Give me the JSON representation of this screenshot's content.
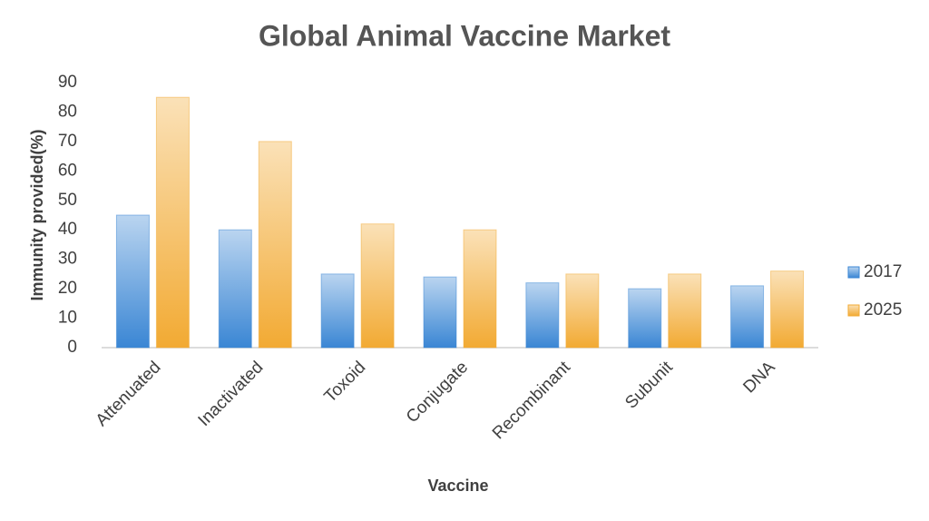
{
  "chart_data": {
    "type": "bar",
    "title": "Global Animal Vaccine Market",
    "x_label": "Vaccine",
    "y_label": "Immunity provided(%)",
    "categories": [
      "Attenuated",
      "Inactivated",
      "Toxoid",
      "Conjugate",
      "Recombinant",
      "Subunit",
      "DNA"
    ],
    "series": [
      {
        "name": "2017",
        "color": "#3a86d4",
        "values": [
          45,
          40,
          25,
          24,
          22,
          20,
          21
        ]
      },
      {
        "name": "2025",
        "color": "#f2aa33",
        "values": [
          85,
          70,
          42,
          40,
          25,
          25,
          26
        ]
      }
    ],
    "ylim": [
      0,
      90
    ],
    "yticks": [
      0,
      10,
      20,
      30,
      40,
      50,
      60,
      70,
      80,
      90
    ],
    "grid": false,
    "legend": "right"
  }
}
